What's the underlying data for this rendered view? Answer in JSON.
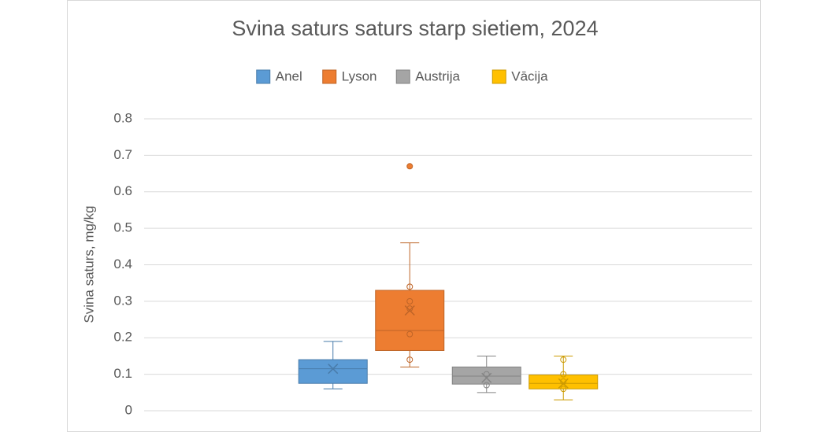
{
  "chart_data": {
    "type": "box",
    "title": "Svina saturs saturs starp sietiem, 2024",
    "y_label": "Svina saturs, mg/kg",
    "ylim": [
      0,
      0.8
    ],
    "yticks": [
      0,
      0.1,
      0.2,
      0.3,
      0.4,
      0.5,
      0.6,
      0.7,
      0.8
    ],
    "grid": true,
    "legend": "top",
    "series": [
      {
        "name": "Anel",
        "color": "#5b9bd5",
        "min": 0.06,
        "q1": 0.075,
        "median": 0.115,
        "q3": 0.14,
        "max": 0.19,
        "mean": 0.115,
        "points": [],
        "outliers": []
      },
      {
        "name": "Lyson",
        "color": "#ed7d31",
        "min": 0.12,
        "q1": 0.165,
        "median": 0.22,
        "q3": 0.33,
        "max": 0.46,
        "mean": 0.275,
        "points": [
          0.34,
          0.3,
          0.28,
          0.21,
          0.14
        ],
        "outliers": [
          0.67
        ]
      },
      {
        "name": "Austrija",
        "color": "#a5a5a5",
        "min": 0.05,
        "q1": 0.073,
        "median": 0.095,
        "q3": 0.12,
        "max": 0.15,
        "mean": 0.09,
        "points": [
          0.1,
          0.07
        ],
        "outliers": []
      },
      {
        "name": "Vācija",
        "color": "#ffc000",
        "min": 0.03,
        "q1": 0.06,
        "median": 0.075,
        "q3": 0.098,
        "max": 0.15,
        "mean": 0.075,
        "points": [
          0.14,
          0.1,
          0.08,
          0.06
        ],
        "outliers": []
      }
    ]
  }
}
